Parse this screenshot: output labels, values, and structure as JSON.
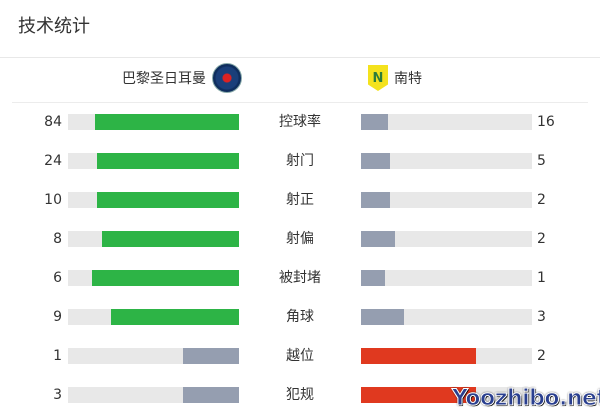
{
  "title": "技术统计",
  "home": {
    "name": "巴黎圣日耳曼",
    "logo_icon": "psg-crest-icon"
  },
  "away": {
    "name": "南特",
    "logo_icon": "nantes-crest-icon",
    "logo_text": "N"
  },
  "colors": {
    "lead_home": "#2db446",
    "lead_away": "#e0391f",
    "trail": "#959eb0",
    "track": "#e8e8e8"
  },
  "stats": [
    {
      "label": "控球率",
      "home": "84",
      "away": "16",
      "home_share": 0.84,
      "away_share": 0.16,
      "leader": "home"
    },
    {
      "label": "射门",
      "home": "24",
      "away": "5",
      "home_share": 0.83,
      "away_share": 0.17,
      "leader": "home"
    },
    {
      "label": "射正",
      "home": "10",
      "away": "2",
      "home_share": 0.83,
      "away_share": 0.17,
      "leader": "home"
    },
    {
      "label": "射偏",
      "home": "8",
      "away": "2",
      "home_share": 0.8,
      "away_share": 0.2,
      "leader": "home"
    },
    {
      "label": "被封堵",
      "home": "6",
      "away": "1",
      "home_share": 0.86,
      "away_share": 0.14,
      "leader": "home"
    },
    {
      "label": "角球",
      "home": "9",
      "away": "3",
      "home_share": 0.75,
      "away_share": 0.25,
      "leader": "home"
    },
    {
      "label": "越位",
      "home": "1",
      "away": "2",
      "home_share": 0.33,
      "away_share": 0.67,
      "leader": "away"
    },
    {
      "label": "犯规",
      "home": "3",
      "home_share": 0.33,
      "away_share": 0.67,
      "leader": "away"
    }
  ],
  "watermark": "Yoozhibo.net"
}
